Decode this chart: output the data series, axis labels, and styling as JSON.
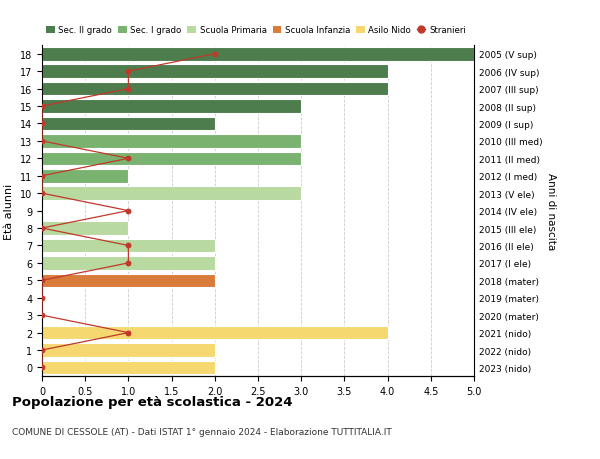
{
  "ages": [
    18,
    17,
    16,
    15,
    14,
    13,
    12,
    11,
    10,
    9,
    8,
    7,
    6,
    5,
    4,
    3,
    2,
    1,
    0
  ],
  "years": [
    "2005 (V sup)",
    "2006 (IV sup)",
    "2007 (III sup)",
    "2008 (II sup)",
    "2009 (I sup)",
    "2010 (III med)",
    "2011 (II med)",
    "2012 (I med)",
    "2013 (V ele)",
    "2014 (IV ele)",
    "2015 (III ele)",
    "2016 (II ele)",
    "2017 (I ele)",
    "2018 (mater)",
    "2019 (mater)",
    "2020 (mater)",
    "2021 (nido)",
    "2022 (nido)",
    "2023 (nido)"
  ],
  "bar_values": [
    5.0,
    4.0,
    4.0,
    3.0,
    2.0,
    3.0,
    3.0,
    1.0,
    3.0,
    0.0,
    1.0,
    2.0,
    2.0,
    2.0,
    0.0,
    0.0,
    4.0,
    2.0,
    2.0
  ],
  "bar_colors": [
    "#4d7c4d",
    "#4d7c4d",
    "#4d7c4d",
    "#4d7c4d",
    "#4d7c4d",
    "#7ab370",
    "#7ab370",
    "#7ab370",
    "#b8d9a0",
    "#b8d9a0",
    "#b8d9a0",
    "#b8d9a0",
    "#b8d9a0",
    "#d97b3a",
    "#d97b3a",
    "#d97b3a",
    "#f5d870",
    "#f5d870",
    "#f5d870"
  ],
  "stranieri_values": [
    2.0,
    1.0,
    1.0,
    0.0,
    0.0,
    0.0,
    1.0,
    0.0,
    0.0,
    1.0,
    0.0,
    1.0,
    1.0,
    0.0,
    0.0,
    0.0,
    1.0,
    0.0,
    0.0
  ],
  "legend_labels": [
    "Sec. II grado",
    "Sec. I grado",
    "Scuola Primaria",
    "Scuola Infanzia",
    "Asilo Nido",
    "Stranieri"
  ],
  "legend_colors": [
    "#4d7c4d",
    "#7ab370",
    "#b8d9a0",
    "#d97b3a",
    "#f5d870",
    "#c0392b"
  ],
  "stranieri_color": "#c0392b",
  "ylabel_left": "Età alunni",
  "ylabel_right": "Anni di nascita",
  "title": "Popolazione per età scolastica - 2024",
  "subtitle": "COMUNE DI CESSOLE (AT) - Dati ISTAT 1° gennaio 2024 - Elaborazione TUTTITALIA.IT",
  "xlim": [
    0,
    5.0
  ],
  "background_color": "#ffffff",
  "grid_color": "#cccccc"
}
